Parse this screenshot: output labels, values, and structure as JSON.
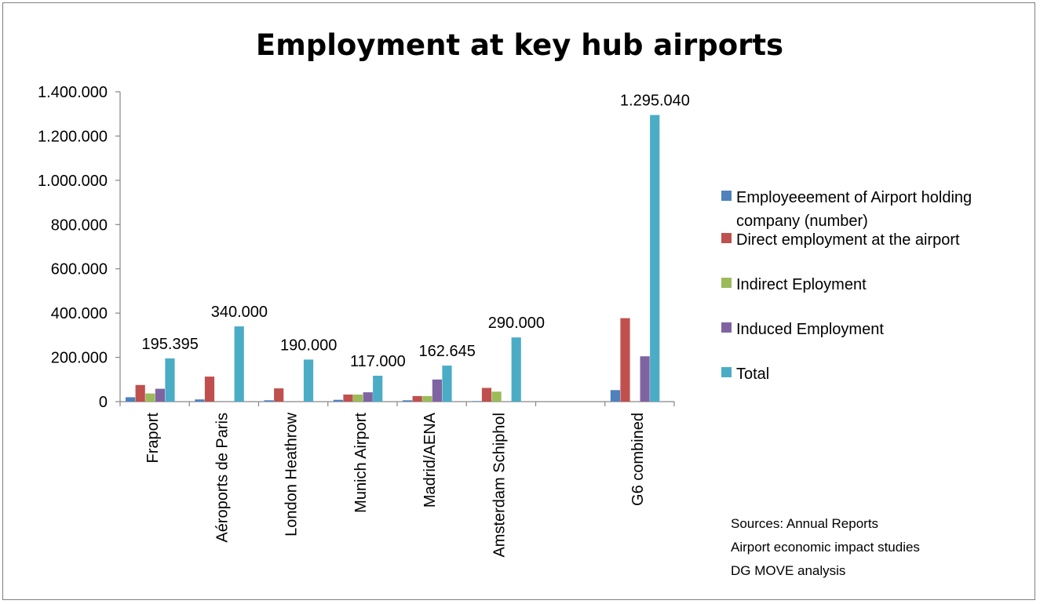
{
  "chart_data": {
    "type": "bar",
    "title": "Employment at key hub airports",
    "xlabel": "",
    "ylabel": "",
    "ylim": [
      0,
      1400000
    ],
    "yticks": [
      0,
      200000,
      400000,
      600000,
      800000,
      1000000,
      1200000,
      1400000
    ],
    "ytick_labels": [
      "0",
      "200.000",
      "400.000",
      "600.000",
      "800.000",
      "1.000.000",
      "1.200.000",
      "1.400.000"
    ],
    "categories": [
      "Fraport",
      "Aéroports de Paris",
      "London Heathrow",
      "Munich Airport",
      "Madrid/AENA",
      "Amsterdam Schiphol",
      "",
      "G6 combined"
    ],
    "series": [
      {
        "name": "Employeeement of Airport holding company (number)",
        "color": "#4f81bd",
        "values": [
          20000,
          10000,
          6000,
          8000,
          6000,
          2000,
          null,
          52000
        ]
      },
      {
        "name": "Direct employment at the airport",
        "color": "#c0504d",
        "values": [
          75000,
          113000,
          60000,
          32000,
          25000,
          62000,
          null,
          377000
        ]
      },
      {
        "name": "Indirect Eployment",
        "color": "#9bbb59",
        "values": [
          37000,
          0,
          0,
          32000,
          25000,
          45000,
          null,
          0
        ]
      },
      {
        "name": "Induced Employment",
        "color": "#8064a2",
        "values": [
          58000,
          0,
          0,
          42000,
          100000,
          0,
          null,
          205000
        ]
      },
      {
        "name": "Total",
        "color": "#4bacc6",
        "values": [
          195395,
          340000,
          190000,
          117000,
          162645,
          290000,
          null,
          1295040
        ]
      }
    ],
    "data_labels": [
      "195.395",
      "340.000",
      "190.000",
      "117.000",
      "162.645",
      "290.000",
      "",
      "1.295.040"
    ],
    "grid": false,
    "legend_position": "right"
  },
  "sources": [
    "Sources: Annual Reports",
    "Airport economic impact studies",
    "DG MOVE analysis"
  ]
}
